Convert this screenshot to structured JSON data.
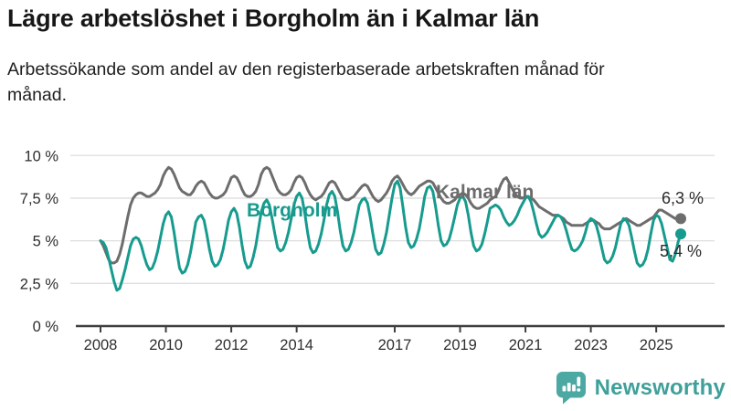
{
  "header": {
    "title": "Lägre arbetslöshet i Borgholm än i Kalmar län",
    "subtitle": "Arbetssökande som andel av den registerbaserade arbetskraften månad för månad."
  },
  "chart_data": {
    "type": "line",
    "unit": "%",
    "frequency": "monthly",
    "start": "2008-01",
    "end": "2025-10",
    "grid": "horizontal",
    "ylim": [
      0,
      10
    ],
    "y_ticks": [
      10,
      7.5,
      5,
      2.5,
      0
    ],
    "y_tick_labels": [
      "10 %",
      "7,5 %",
      "5 %",
      "2,5 %",
      "0 %"
    ],
    "x_tick_years": [
      2008,
      2010,
      2012,
      2014,
      2017,
      2019,
      2021,
      2023,
      2025
    ],
    "x_tick_labels": [
      "2008",
      "2010",
      "2012",
      "2014",
      "2017",
      "2019",
      "2021",
      "2023",
      "2025"
    ],
    "series": [
      {
        "name": "Borgholm",
        "color": "#169b8e",
        "end_label": "5,4 %",
        "values": [
          5.0,
          4.9,
          4.6,
          4.0,
          3.3,
          2.6,
          2.1,
          2.2,
          2.7,
          3.3,
          4.0,
          4.7,
          5.1,
          5.2,
          5.1,
          4.7,
          4.1,
          3.6,
          3.3,
          3.4,
          3.8,
          4.4,
          5.2,
          6.0,
          6.5,
          6.7,
          6.4,
          5.5,
          4.4,
          3.4,
          3.1,
          3.2,
          3.6,
          4.3,
          5.2,
          6.1,
          6.4,
          6.5,
          6.2,
          5.4,
          4.5,
          3.8,
          3.5,
          3.6,
          3.9,
          4.5,
          5.3,
          6.2,
          6.7,
          6.9,
          6.6,
          5.8,
          4.7,
          3.8,
          3.4,
          3.5,
          4.0,
          4.7,
          5.7,
          6.7,
          7.2,
          7.4,
          7.1,
          6.3,
          5.4,
          4.6,
          4.4,
          4.5,
          4.9,
          5.5,
          6.3,
          7.1,
          7.6,
          7.8,
          7.5,
          6.6,
          5.5,
          4.6,
          4.3,
          4.4,
          4.8,
          5.4,
          6.2,
          7.1,
          7.7,
          7.9,
          7.6,
          6.7,
          5.6,
          4.7,
          4.4,
          4.5,
          4.9,
          5.5,
          6.3,
          7.1,
          7.4,
          7.5,
          7.2,
          6.4,
          5.4,
          4.5,
          4.2,
          4.3,
          4.8,
          5.5,
          6.5,
          7.5,
          8.3,
          8.5,
          8.1,
          7.0,
          5.8,
          4.9,
          4.6,
          4.7,
          5.1,
          5.7,
          6.6,
          7.6,
          8.1,
          8.2,
          7.9,
          7.0,
          5.9,
          5.0,
          4.7,
          4.8,
          5.1,
          5.7,
          6.4,
          7.1,
          7.5,
          7.6,
          7.3,
          6.5,
          5.5,
          4.7,
          4.4,
          4.5,
          4.8,
          5.4,
          6.1,
          6.9,
          7.0,
          7.1,
          7.0,
          6.8,
          6.4,
          6.1,
          5.9,
          6.0,
          6.2,
          6.5,
          6.9,
          7.2,
          7.5,
          7.6,
          7.3,
          6.7,
          6.0,
          5.4,
          5.2,
          5.3,
          5.5,
          5.8,
          6.1,
          6.4,
          6.5,
          6.4,
          6.1,
          5.6,
          5.0,
          4.5,
          4.4,
          4.5,
          4.7,
          5.0,
          5.5,
          6.1,
          6.3,
          6.2,
          5.9,
          5.3,
          4.6,
          3.9,
          3.7,
          3.8,
          4.1,
          4.6,
          5.3,
          6.0,
          6.3,
          6.2,
          5.9,
          5.2,
          4.4,
          3.7,
          3.5,
          3.6,
          3.9,
          4.5,
          5.4,
          6.2,
          6.5,
          6.4,
          6.0,
          5.3,
          4.6,
          3.9,
          3.8,
          4.2,
          4.9,
          5.4
        ]
      },
      {
        "name": "Kalmar län",
        "color": "#6d6d6d",
        "end_label": "6,3 %",
        "values": [
          5.0,
          4.7,
          4.3,
          3.9,
          3.7,
          3.7,
          3.8,
          4.2,
          4.8,
          5.6,
          6.4,
          7.1,
          7.5,
          7.7,
          7.8,
          7.8,
          7.7,
          7.6,
          7.6,
          7.7,
          7.8,
          8.0,
          8.3,
          8.8,
          9.1,
          9.3,
          9.2,
          8.9,
          8.5,
          8.1,
          7.9,
          7.8,
          7.7,
          7.7,
          7.9,
          8.2,
          8.4,
          8.5,
          8.4,
          8.1,
          7.8,
          7.6,
          7.5,
          7.5,
          7.6,
          7.7,
          7.9,
          8.3,
          8.7,
          8.8,
          8.7,
          8.4,
          8.0,
          7.7,
          7.6,
          7.6,
          7.7,
          7.9,
          8.3,
          8.9,
          9.2,
          9.3,
          9.2,
          8.8,
          8.4,
          8.0,
          7.8,
          7.7,
          7.7,
          7.8,
          8.0,
          8.4,
          8.7,
          8.8,
          8.7,
          8.4,
          8.0,
          7.7,
          7.5,
          7.4,
          7.5,
          7.6,
          7.8,
          8.1,
          8.4,
          8.5,
          8.4,
          8.1,
          7.8,
          7.5,
          7.4,
          7.4,
          7.5,
          7.6,
          7.8,
          8.0,
          8.2,
          8.3,
          8.2,
          7.9,
          7.6,
          7.4,
          7.3,
          7.4,
          7.6,
          7.8,
          8.1,
          8.5,
          8.7,
          8.8,
          8.6,
          8.3,
          8.0,
          7.8,
          7.7,
          7.8,
          8.0,
          8.2,
          8.3,
          8.4,
          8.5,
          8.5,
          8.4,
          8.1,
          7.8,
          7.5,
          7.3,
          7.2,
          7.2,
          7.3,
          7.4,
          7.6,
          7.7,
          7.8,
          7.7,
          7.5,
          7.2,
          7.0,
          6.9,
          6.9,
          7.0,
          7.1,
          7.2,
          7.4,
          7.5,
          7.6,
          7.9,
          8.3,
          8.6,
          8.7,
          8.4,
          8.1,
          7.8,
          7.6,
          7.5,
          7.5,
          7.6,
          7.6,
          7.5,
          7.4,
          7.2,
          7.0,
          6.9,
          6.8,
          6.7,
          6.6,
          6.5,
          6.5,
          6.5,
          6.4,
          6.3,
          6.1,
          6.0,
          5.9,
          5.9,
          5.9,
          5.9,
          5.9,
          6.0,
          6.1,
          6.2,
          6.2,
          6.1,
          6.0,
          5.8,
          5.7,
          5.7,
          5.7,
          5.8,
          5.9,
          6.0,
          6.1,
          6.2,
          6.3,
          6.2,
          6.1,
          6.0,
          5.9,
          5.9,
          6.0,
          6.1,
          6.2,
          6.3,
          6.4,
          6.6,
          6.8,
          6.8,
          6.7,
          6.6,
          6.5,
          6.4,
          6.3,
          6.3,
          6.3
        ]
      }
    ]
  },
  "footer": {
    "brand": "Newsworthy",
    "brand_color": "#3fa09a",
    "logo_box_color": "#4ca8a2",
    "logo_icon": "newsworthy-speech-bubble-bar-chart-icon"
  }
}
